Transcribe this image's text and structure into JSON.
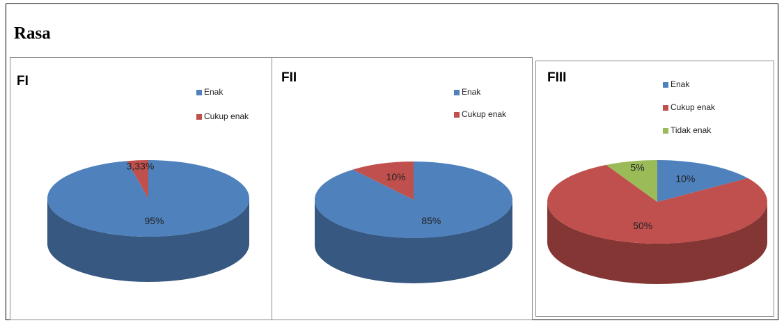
{
  "title": "Rasa",
  "chart_data": [
    {
      "type": "pie",
      "title": "FI",
      "categories": [
        "Enak",
        "Cukup enak"
      ],
      "values": [
        95,
        3.33
      ],
      "value_labels": [
        "95%",
        "3,33%"
      ],
      "colors": [
        "#4f81bd",
        "#c0504d"
      ]
    },
    {
      "type": "pie",
      "title": "FII",
      "categories": [
        "Enak",
        "Cukup enak"
      ],
      "values": [
        85,
        10
      ],
      "value_labels": [
        "85%",
        "10%"
      ],
      "colors": [
        "#4f81bd",
        "#c0504d"
      ]
    },
    {
      "type": "pie",
      "title": "FIII",
      "categories": [
        "Enak",
        "Cukup enak",
        "Tidak enak"
      ],
      "values": [
        10,
        50,
        5
      ],
      "value_labels": [
        "10%",
        "50%",
        "5%"
      ],
      "colors": [
        "#4f81bd",
        "#c0504d",
        "#9bbb59"
      ]
    }
  ]
}
